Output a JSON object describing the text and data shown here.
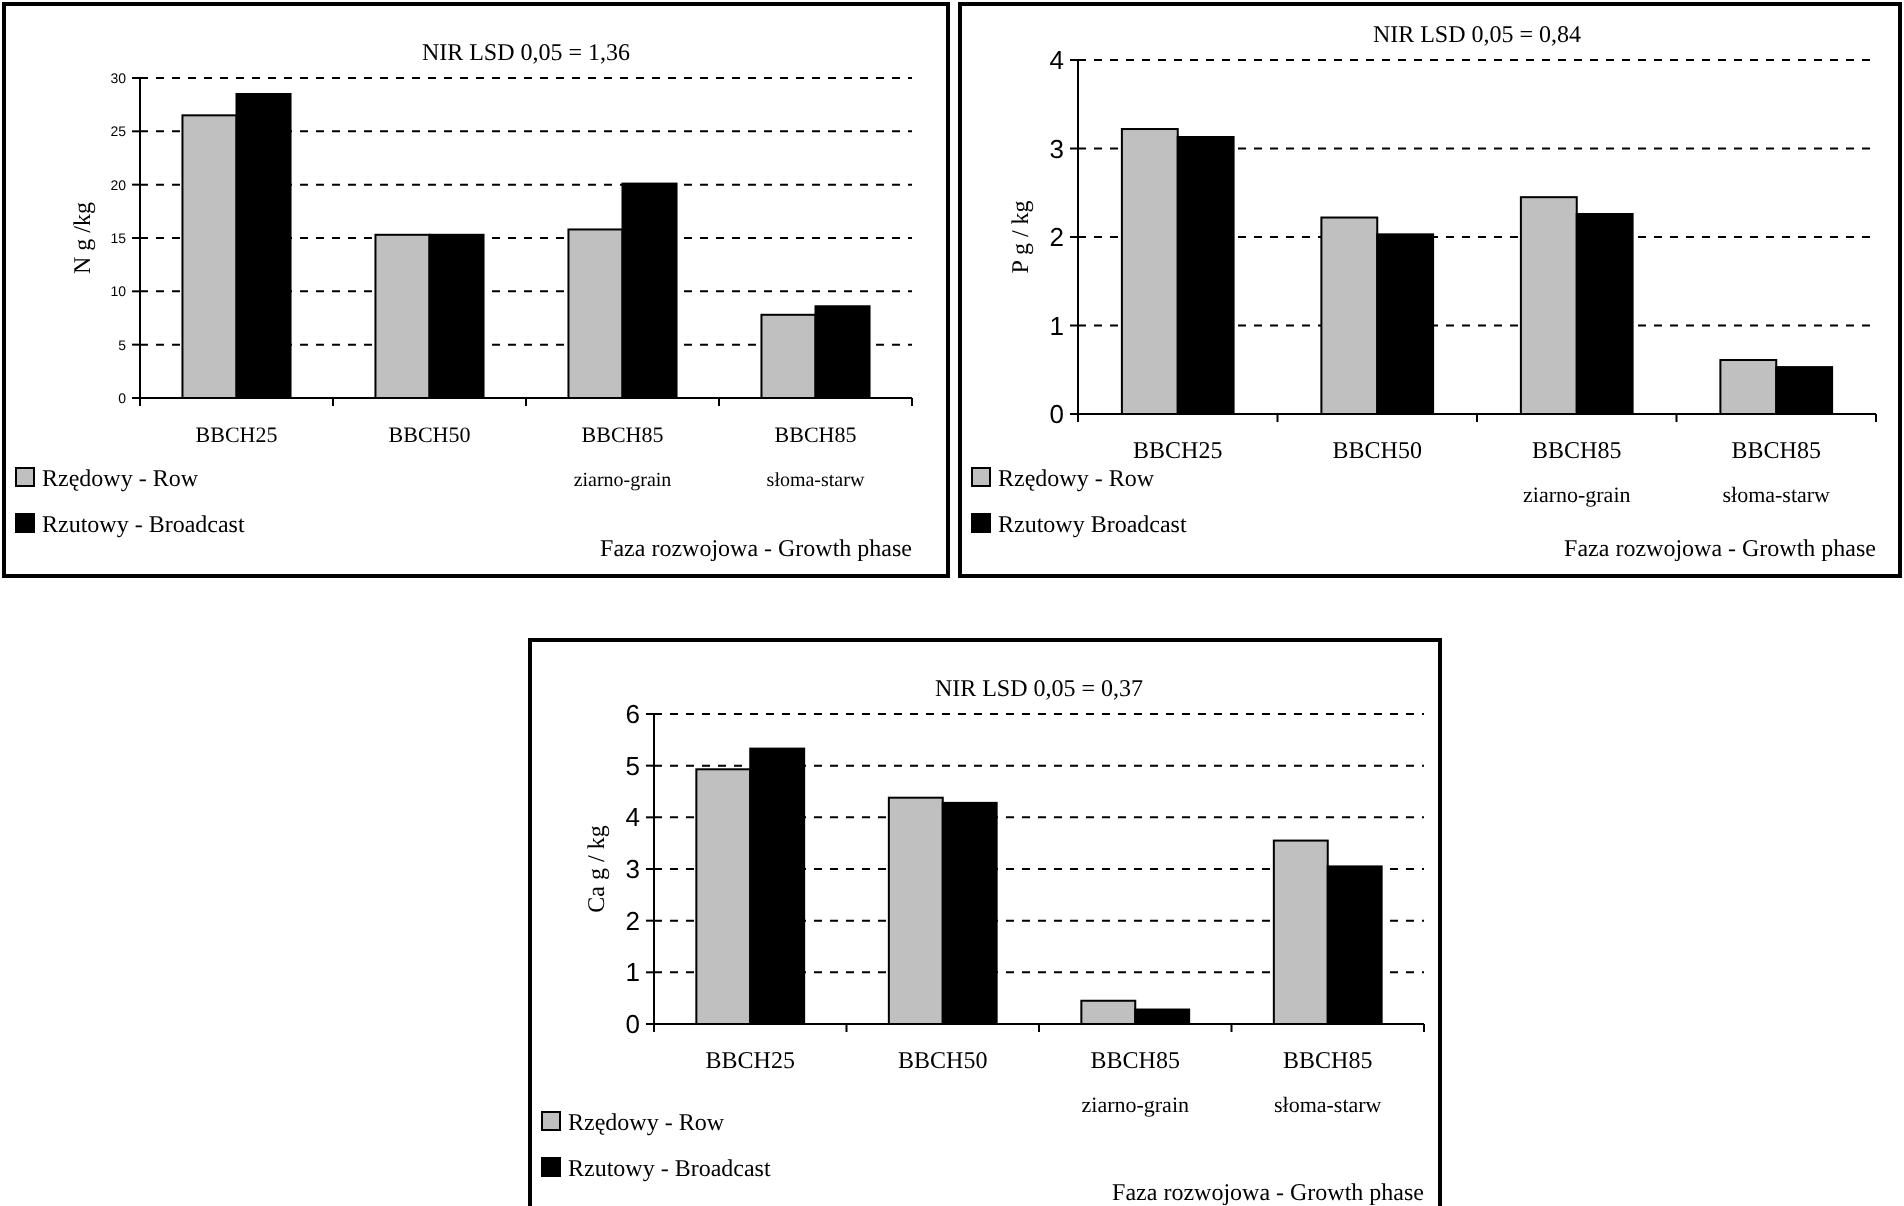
{
  "chart_data": [
    {
      "type": "bar",
      "title": "NIR LSD 0,05 = 1,36",
      "ylabel": "N g /kg",
      "xlabel": "Faza rozwojowa - Growth phase",
      "categories": [
        "BBCH25",
        "BBCH50",
        "BBCH85\nziarno-grain",
        "BBCH85\nsłoma-starw"
      ],
      "series": [
        {
          "name": "Rzędowy - Row",
          "color": "#c0c0c0",
          "values": [
            26.5,
            15.3,
            15.8,
            7.8
          ]
        },
        {
          "name": "Rzutowy - Broadcast",
          "color": "#000000",
          "values": [
            28.5,
            15.3,
            20.1,
            8.6
          ]
        }
      ],
      "ylim": [
        0,
        30
      ],
      "yticks": [
        0,
        5,
        10,
        15,
        20,
        25,
        30
      ],
      "grid": "y",
      "legend": "bottom left"
    },
    {
      "type": "bar",
      "title": "NIR LSD  0,05 = 0,84",
      "ylabel": "P g / kg",
      "xlabel": "Faza rozwojowa - Growth phase",
      "categories": [
        "BBCH25",
        "BBCH50",
        "BBCH85\nziarno-grain",
        "BBCH85\nsłoma-starw"
      ],
      "series": [
        {
          "name": "Rzędowy - Row",
          "color": "#c0c0c0",
          "values": [
            3.22,
            2.22,
            2.45,
            0.61
          ]
        },
        {
          "name": "Rzutowy Broadcast",
          "color": "#000000",
          "values": [
            3.13,
            2.03,
            2.26,
            0.53
          ]
        }
      ],
      "ylim": [
        0,
        4
      ],
      "yticks": [
        0,
        1,
        2,
        3,
        4
      ],
      "grid": "y",
      "legend": "bottom left"
    },
    {
      "type": "bar",
      "title": "NIR LSD  0,05 = 0,37",
      "ylabel": "Ca g / kg",
      "xlabel": "Faza rozwojowa - Growth phase",
      "categories": [
        "BBCH25",
        "BBCH50",
        "BBCH85\nziarno-grain",
        "BBCH85\nsłoma-starw"
      ],
      "series": [
        {
          "name": "Rzędowy - Row",
          "color": "#c0c0c0",
          "values": [
            4.93,
            4.38,
            0.45,
            3.55
          ]
        },
        {
          "name": "Rzutowy - Broadcast",
          "color": "#000000",
          "values": [
            5.33,
            4.28,
            0.28,
            3.05
          ]
        }
      ],
      "ylim": [
        0,
        6
      ],
      "yticks": [
        0,
        1,
        2,
        3,
        4,
        5,
        6
      ],
      "grid": "y",
      "legend": "bottom left"
    }
  ]
}
